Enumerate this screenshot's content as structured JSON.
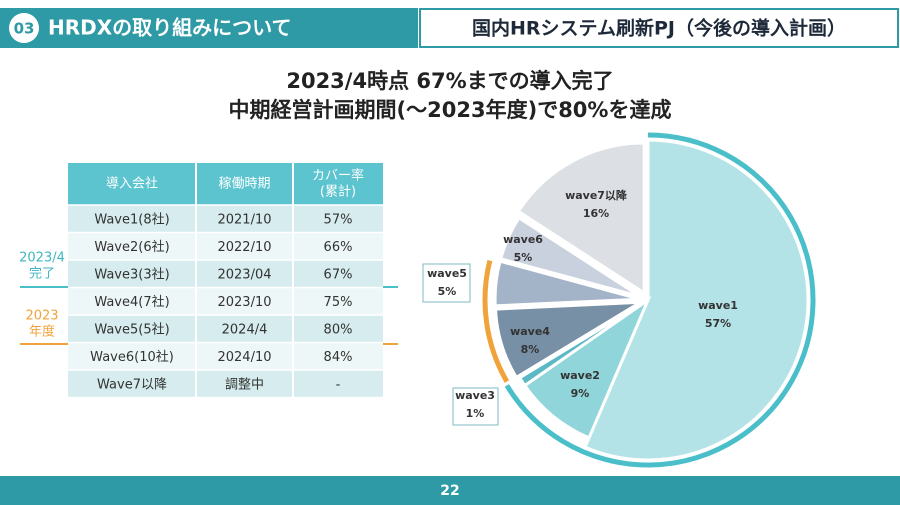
{
  "header": {
    "section_number": "03",
    "section_title": "HRDXの取り組みについて",
    "page_title": "国内HRシステム刷新PJ（今後の導入計画）"
  },
  "headline": [
    "2023/4時点 67%までの導入完了",
    "中期経営計画期間(～2023年度)で80%を達成"
  ],
  "table": {
    "columns": [
      "導入会社",
      "稼働時期",
      [
        "カバー率",
        "(累計)"
      ]
    ],
    "rows": [
      [
        "Wave1(8社)",
        "2021/10",
        "57%"
      ],
      [
        "Wave2(6社)",
        "2022/10",
        "66%"
      ],
      [
        "Wave3(3社)",
        "2023/04",
        "67%"
      ],
      [
        "Wave4(7社)",
        "2023/10",
        "75%"
      ],
      [
        "Wave5(5社)",
        "2024/4",
        "80%"
      ],
      [
        "Wave6(10社)",
        "2024/10",
        "84%"
      ],
      [
        "Wave7以降",
        "調整中",
        "-"
      ]
    ]
  },
  "side_labels": [
    [
      "2023/4",
      "完了"
    ],
    [
      "2023",
      "年度"
    ]
  ],
  "chart_data": {
    "type": "pie",
    "categories": [
      "wave1",
      "wave2",
      "wave3",
      "wave4",
      "wave5",
      "wave6",
      "wave7以降"
    ],
    "values": [
      57,
      9,
      1,
      8,
      5,
      5,
      16
    ],
    "value_labels": [
      "57%",
      "9%",
      "1%",
      "8%",
      "5%",
      "5%",
      "16%"
    ],
    "colors": [
      "#b3e3e6",
      "#8fd5da",
      "#5bb8c4",
      "#7890a6",
      "#a3b3c8",
      "#c9d1de",
      "#dcdfe4"
    ]
  },
  "footer": {
    "page_number": "22"
  }
}
